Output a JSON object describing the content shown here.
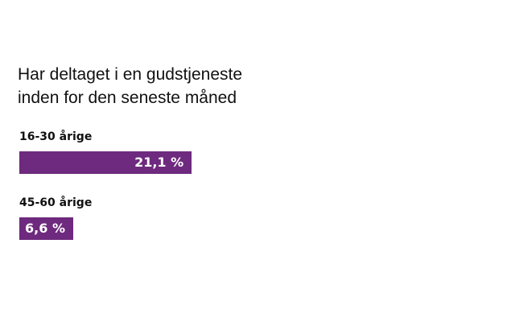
{
  "chart_data": {
    "type": "bar",
    "orientation": "horizontal",
    "title": "Har deltaget i en gudstjeneste\ninden for den seneste måned",
    "categories": [
      "16-30 årige",
      "45-60 årige"
    ],
    "values": [
      21.1,
      6.6
    ],
    "value_labels": [
      "21,1 %",
      "6,6 %"
    ],
    "color": "#6e2a7e"
  }
}
